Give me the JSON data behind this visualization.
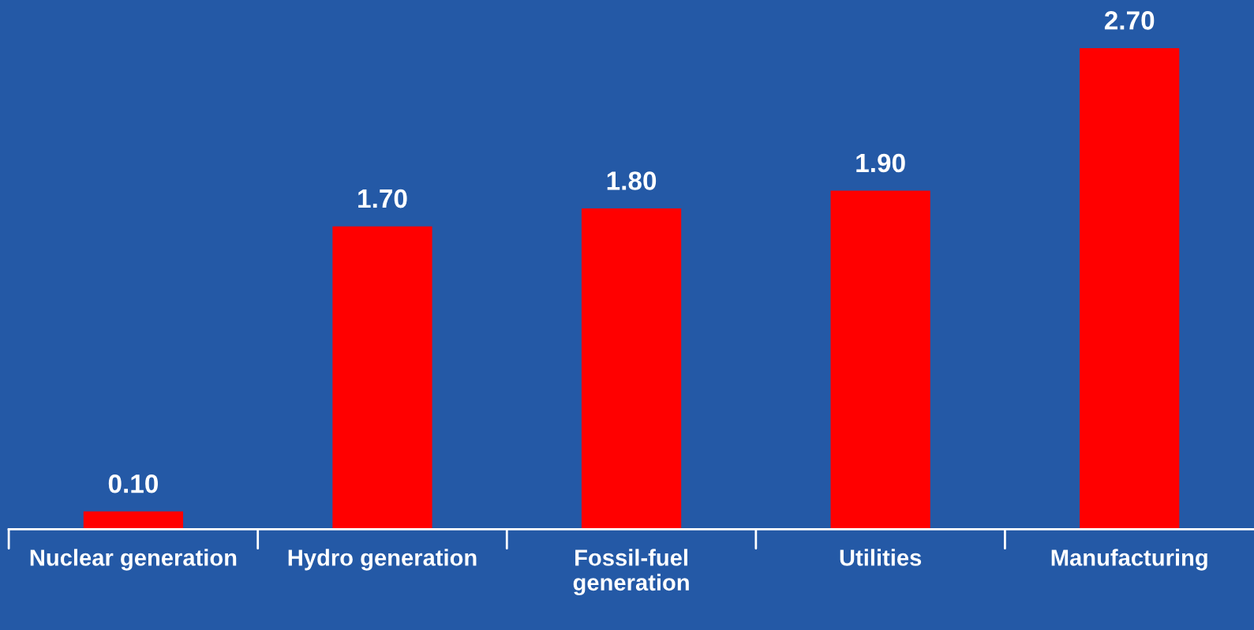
{
  "chart_data": {
    "type": "bar",
    "categories": [
      "Nuclear generation",
      "Hydro generation",
      "Fossil-fuel generation",
      "Utilities",
      "Manufacturing"
    ],
    "values": [
      0.1,
      1.7,
      1.8,
      1.9,
      2.7
    ],
    "value_labels": [
      "0.10",
      "1.70",
      "1.80",
      "1.90",
      "2.70"
    ],
    "color": "#ff0000",
    "grid": false,
    "legend": false
  }
}
